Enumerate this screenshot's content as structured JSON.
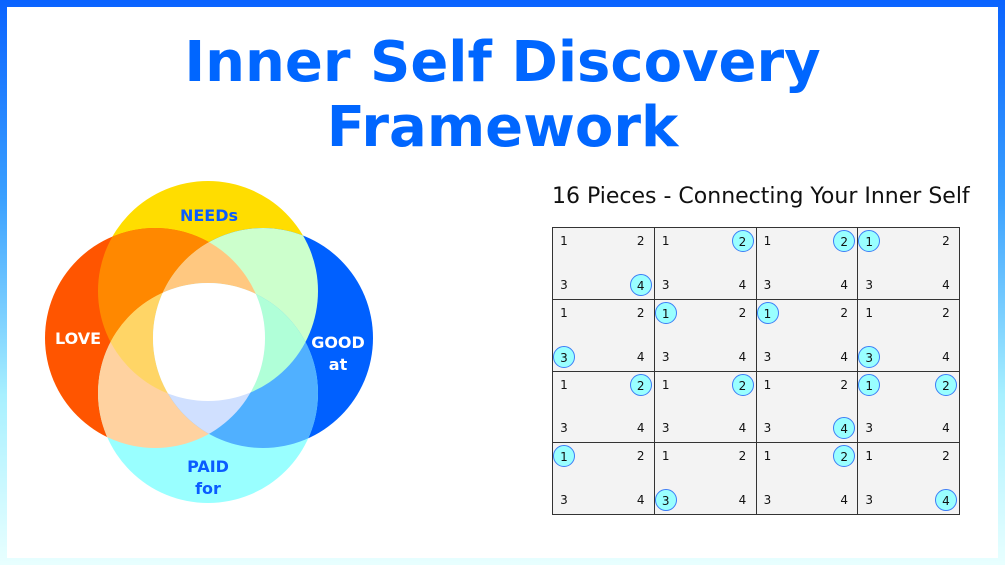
{
  "title": "Inner Self Discovery Framework",
  "venn": {
    "circles": [
      {
        "label_lines": [
          "NEEDs"
        ],
        "color": "#ffdd00",
        "text_color": "#0a5cff"
      },
      {
        "label_lines": [
          "LOVE"
        ],
        "color": "#ff5500",
        "text_color": "#ffffff"
      },
      {
        "label_lines": [
          "GOOD",
          "at"
        ],
        "color": "#0060ff",
        "text_color": "#ffffff"
      },
      {
        "label_lines": [
          "PAID",
          "for"
        ],
        "color": "#99ffff",
        "text_color": "#0a5cff"
      }
    ],
    "overlap_colors": {
      "needs_love": "#ff8800",
      "needs_good": "#ccffcc",
      "love_paid": "#ffd2a0",
      "good_paid": "#50b0ff",
      "needs_love_good": "#ffc880",
      "needs_love_paid": "#ffd566",
      "needs_good_paid": "#b0ffd8",
      "love_good_paid": "#d0e0ff",
      "all": "#ffffff"
    }
  },
  "grid": {
    "title": "16 Pieces - Connecting Your Inner Self",
    "numbers": [
      "1",
      "2",
      "3",
      "4"
    ],
    "highlight_fill": "#99ffff",
    "highlight_stroke": "#3b7df6",
    "cells": [
      {
        "highlighted": [
          4
        ]
      },
      {
        "highlighted": [
          2
        ]
      },
      {
        "highlighted": [
          2
        ]
      },
      {
        "highlighted": [
          1
        ]
      },
      {
        "highlighted": [
          3
        ]
      },
      {
        "highlighted": [
          1
        ]
      },
      {
        "highlighted": [
          1
        ]
      },
      {
        "highlighted": [
          3
        ]
      },
      {
        "highlighted": [
          2
        ]
      },
      {
        "highlighted": [
          2
        ]
      },
      {
        "highlighted": [
          4
        ]
      },
      {
        "highlighted": [
          1,
          2
        ]
      },
      {
        "highlighted": [
          1
        ]
      },
      {
        "highlighted": [
          3
        ]
      },
      {
        "highlighted": [
          2
        ]
      },
      {
        "highlighted": [
          4
        ]
      }
    ]
  }
}
